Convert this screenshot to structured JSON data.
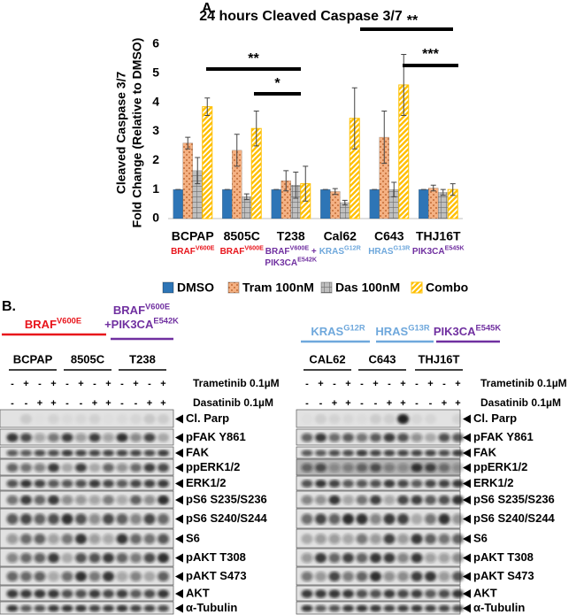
{
  "chart_data": {
    "type": "bar",
    "panel_label": "A.",
    "title": "24 hours Cleaved Caspase 3/7",
    "y_label": [
      "Cleaved Caspase 3/7",
      "Fold Change (Relative to DMSO)"
    ],
    "categories": [
      "BCPAP",
      "8505C",
      "T238",
      "Cal62",
      "C643",
      "THJ16T"
    ],
    "mutations": [
      {
        "color": "#e8141b",
        "lines": [
          [
            {
              "text": "BRAF",
              "sup": "V600E"
            }
          ]
        ]
      },
      {
        "color": "#e8141b",
        "lines": [
          [
            {
              "text": "BRAF",
              "sup": "V600E"
            }
          ]
        ]
      },
      {
        "color": "#7030a0",
        "lines": [
          [
            {
              "text": "BRAF",
              "sup": "V600E"
            },
            {
              "text": " +"
            }
          ],
          [
            {
              "text": "PIK3CA",
              "sup": "E542K"
            }
          ]
        ]
      },
      {
        "color": "#6fa8dc",
        "lines": [
          [
            {
              "text": "KRAS",
              "sup": "G12R"
            }
          ]
        ]
      },
      {
        "color": "#6fa8dc",
        "lines": [
          [
            {
              "text": "HRAS",
              "sup": "G13R"
            }
          ]
        ]
      },
      {
        "color": "#7030a0",
        "lines": [
          [
            {
              "text": "PIK3CA",
              "sup": "E545K"
            }
          ]
        ]
      }
    ],
    "series": [
      {
        "name": "DMSO",
        "color": "#2e75b6",
        "pattern": "solid",
        "values": [
          1,
          1,
          1,
          1,
          1,
          1
        ],
        "errors": [
          0,
          0,
          0,
          0,
          0,
          0
        ]
      },
      {
        "name": "Tram 100nM",
        "color": "#f4b183",
        "pattern": "dots",
        "values": [
          2.6,
          2.35,
          1.3,
          0.93,
          2.8,
          1.05
        ],
        "errors": [
          0.2,
          0.55,
          0.35,
          0.1,
          0.9,
          0.1
        ]
      },
      {
        "name": "Das 100nM",
        "color": "#bfbfbf",
        "pattern": "grid",
        "values": [
          1.65,
          0.75,
          1.15,
          0.55,
          1.0,
          0.9
        ],
        "errors": [
          0.45,
          0.1,
          0.45,
          0.08,
          0.25,
          0.1
        ]
      },
      {
        "name": "Combo",
        "color": "#ffc000",
        "pattern": "diagonal",
        "values": [
          3.85,
          3.1,
          1.2,
          3.45,
          4.6,
          1.0
        ],
        "errors": [
          0.3,
          0.6,
          0.6,
          1.05,
          1.05,
          0.2
        ]
      }
    ],
    "ylim": [
      0,
      6
    ],
    "yticks": [
      0,
      1,
      2,
      3,
      4,
      5,
      6
    ],
    "annotations": [
      "**",
      "*",
      "**",
      "***"
    ]
  },
  "panel_b": {
    "label": "B.",
    "blots": [
      {
        "headers": [
          {
            "color": "#e8141b",
            "lines": [
              [
                {
                  "text": "BRAF",
                  "sup": "V600E"
                }
              ]
            ]
          },
          {
            "color": "#7030a0",
            "lines": [
              [
                {
                  "text": "BRAF",
                  "sup": "V600E"
                }
              ],
              [
                {
                  "text": "+PIK3CA",
                  "sup": "E542K"
                }
              ]
            ]
          }
        ],
        "cell_lines": [
          "BCPAP",
          "8505C",
          "T238"
        ],
        "trametinib": [
          "-",
          "+",
          "-",
          "+",
          "-",
          "+",
          "-",
          "+",
          "-",
          "+",
          "-",
          "+"
        ],
        "dasatinib": [
          "-",
          "-",
          "+",
          "+",
          "-",
          "-",
          "+",
          "+",
          "-",
          "-",
          "+",
          "+"
        ],
        "treatments": [
          "Trametinib 0.1µM",
          "Dasatinib 0.1µM"
        ],
        "proteins": [
          "Cl. Parp",
          "pFAK Y861",
          "FAK",
          "ppERK1/2",
          "ERK1/2",
          "pS6 S235/S236",
          "pS6 S240/S244",
          "S6",
          "pAKT T308",
          "pAKT S473",
          "AKT",
          "α-Tubulin"
        ]
      },
      {
        "headers": [
          {
            "color": "#6fa8dc",
            "lines": [
              [
                {
                  "text": "KRAS",
                  "sup": "G12R"
                }
              ]
            ]
          },
          {
            "color": "#6fa8dc",
            "lines": [
              [
                {
                  "text": "HRAS",
                  "sup": "G13R"
                }
              ]
            ]
          },
          {
            "color": "#7030a0",
            "lines": [
              [
                {
                  "text": "PIK3CA",
                  "sup": "E545K"
                }
              ]
            ]
          }
        ],
        "cell_lines": [
          "CAL62",
          "C643",
          "THJ16T"
        ],
        "trametinib": [
          "-",
          "+",
          "-",
          "+",
          "-",
          "+",
          "-",
          "+",
          "-",
          "+",
          "-",
          "+"
        ],
        "dasatinib": [
          "-",
          "-",
          "+",
          "+",
          "-",
          "-",
          "+",
          "+",
          "-",
          "-",
          "+",
          "+"
        ],
        "treatments": [
          "Trametinib 0.1µM",
          "Dasatinib 0.1µM"
        ],
        "proteins": [
          "Cl. Parp",
          "pFAK Y861",
          "FAK",
          "ppERK1/2",
          "ERK1/2",
          "pS6 S235/S236",
          "pS6 S240/S244",
          "S6",
          "pAKT T308",
          "pAKT S473",
          "AKT",
          "α-Tubulin"
        ]
      }
    ]
  }
}
